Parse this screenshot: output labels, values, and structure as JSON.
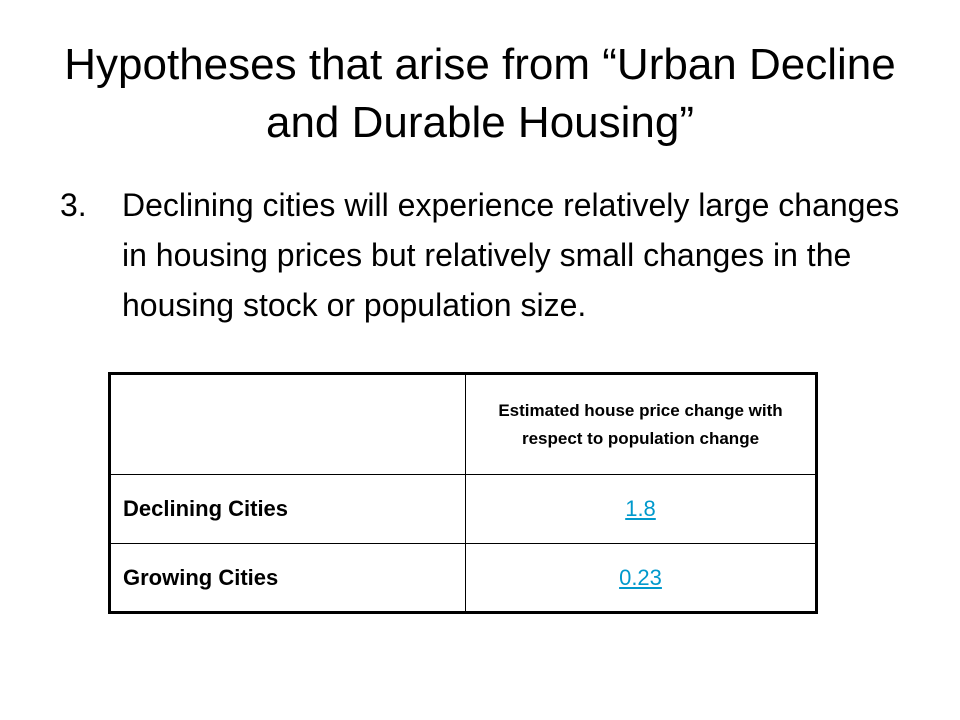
{
  "slide": {
    "title": "Hypotheses that arise from “Urban Decline and Durable Housing”",
    "bullets": [
      {
        "number": "3.",
        "text": "Declining cities will experience relatively large changes in housing prices but relatively small changes in the housing stock or population size."
      }
    ]
  },
  "table": {
    "header": {
      "corner": "",
      "column": "Estimated house price change with respect to population change"
    },
    "rows": [
      {
        "label": "Declining Cities",
        "value": "1.8"
      },
      {
        "label": "Growing Cities",
        "value": "0.23"
      }
    ],
    "link_color": "#0099cc"
  }
}
